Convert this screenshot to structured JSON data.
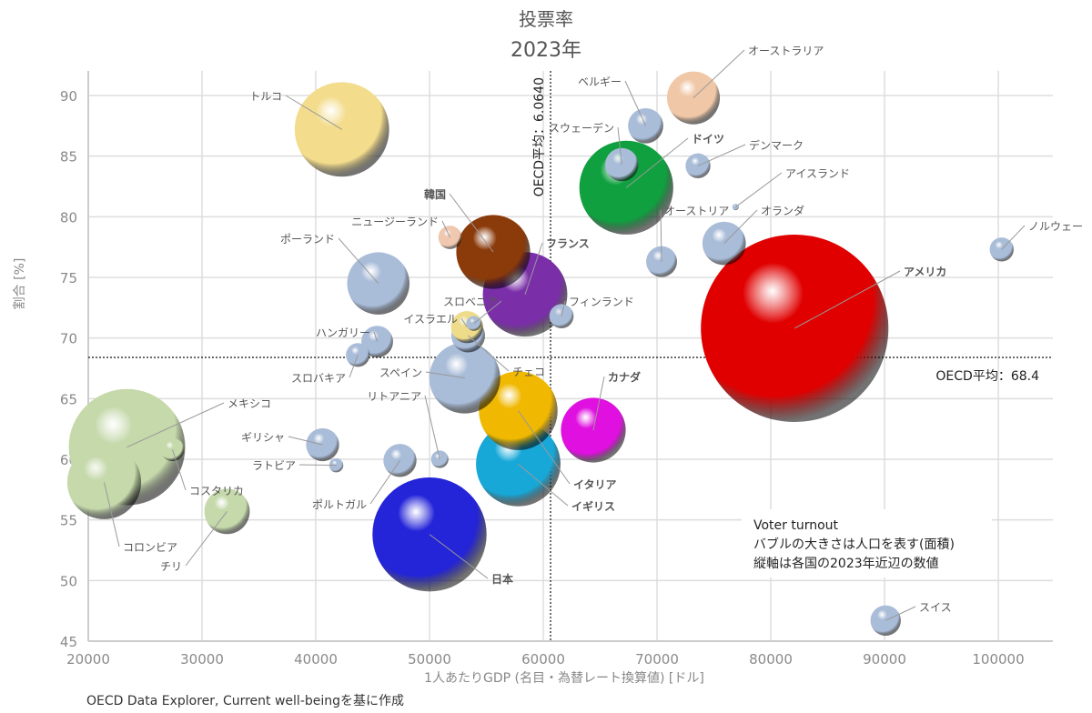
{
  "chart_data": {
    "type": "bubble",
    "title": "投票率",
    "subtitle": "2023年",
    "xlabel": "1人あたりGDP (名目・為替レート換算値) [ドル]",
    "ylabel": "割合 [%]",
    "xlim": [
      20000,
      105000
    ],
    "ylim": [
      45,
      92
    ],
    "xticks": [
      "20000",
      "30000",
      "40000",
      "50000",
      "60000",
      "70000",
      "80000",
      "90000",
      "100000"
    ],
    "yticks": [
      "45",
      "50",
      "55",
      "60",
      "65",
      "70",
      "75",
      "80",
      "85",
      "90"
    ],
    "grid": true,
    "size_meaning": "population (area)",
    "oecd_avg_x": {
      "value": 60640,
      "label": "OECD平均：6.0640"
    },
    "oecd_avg_y": {
      "value": 68.4,
      "label": "OECD平均：68.4"
    },
    "note": [
      "Voter turnout",
      "バブルの大きさは人口を表す(面積)",
      "縦軸は各国の2023年近辺の数値"
    ],
    "source": "OECD Data Explorer, Current well-beingを基に作成",
    "points": [
      {
        "name": "メキシコ",
        "x": 23400,
        "y": 61.0,
        "pop": 129,
        "color": "#c5d9ab",
        "label_color": "#555555"
      },
      {
        "name": "コロンビア",
        "x": 21400,
        "y": 58.1,
        "pop": 52,
        "color": "#c5d9ab",
        "label_color": "#555555"
      },
      {
        "name": "コスタリカ",
        "x": 27400,
        "y": 60.8,
        "pop": 5.2,
        "color": "#c5d9ab",
        "label_color": "#555555"
      },
      {
        "name": "チリ",
        "x": 32200,
        "y": 55.7,
        "pop": 19.6,
        "color": "#c5d9ab",
        "label_color": "#555555"
      },
      {
        "name": "トルコ",
        "x": 42300,
        "y": 87.2,
        "pop": 85,
        "color": "#f3dc8c",
        "label_color": "#555555"
      },
      {
        "name": "ポーランド",
        "x": 45500,
        "y": 74.5,
        "pop": 37,
        "color": "#a9bcd8",
        "label_color": "#555555"
      },
      {
        "name": "ハンガリー",
        "x": 45400,
        "y": 69.7,
        "pop": 9.6,
        "color": "#a9bcd8",
        "label_color": "#555555"
      },
      {
        "name": "スロバキア",
        "x": 43700,
        "y": 68.6,
        "pop": 5.4,
        "color": "#a9bcd8",
        "label_color": "#555555"
      },
      {
        "name": "ギリシャ",
        "x": 40600,
        "y": 61.2,
        "pop": 10.4,
        "color": "#a9bcd8",
        "label_color": "#555555"
      },
      {
        "name": "ラトビア",
        "x": 41800,
        "y": 59.5,
        "pop": 1.9,
        "color": "#a9bcd8",
        "label_color": "#555555"
      },
      {
        "name": "ポルトガル",
        "x": 47400,
        "y": 59.9,
        "pop": 10.4,
        "color": "#a9bcd8",
        "label_color": "#555555"
      },
      {
        "name": "リトアニア",
        "x": 50900,
        "y": 60.0,
        "pop": 2.9,
        "color": "#a9bcd8",
        "label_color": "#555555"
      },
      {
        "name": "日本",
        "x": 50000,
        "y": 53.8,
        "pop": 124,
        "color": "#2424d8",
        "label_color": "#2a2ad0"
      },
      {
        "name": "スペイン",
        "x": 53100,
        "y": 66.7,
        "pop": 48,
        "color": "#a9bcd8",
        "label_color": "#555555"
      },
      {
        "name": "チェコ",
        "x": 53400,
        "y": 70.2,
        "pop": 10.8,
        "color": "#a9bcd8",
        "label_color": "#555555"
      },
      {
        "name": "イスラエル",
        "x": 53300,
        "y": 70.9,
        "pop": 9.8,
        "color": "#eedc8a",
        "label_color": "#555555"
      },
      {
        "name": "スロベニア",
        "x": 53900,
        "y": 71.2,
        "pop": 2.1,
        "color": "#a9bcd8",
        "label_color": "#555555"
      },
      {
        "name": "韓国",
        "x": 55600,
        "y": 77.1,
        "pop": 52,
        "color": "#8b3a0a",
        "label_color": "#a0522d"
      },
      {
        "name": "ニュージーランド",
        "x": 51800,
        "y": 78.3,
        "pop": 5.2,
        "color": "#f0c8b0",
        "label_color": "#555555"
      },
      {
        "name": "フランス",
        "x": 58400,
        "y": 73.6,
        "pop": 68,
        "color": "#7a2fa8",
        "label_color": "#7a3aa8"
      },
      {
        "name": "フィンランド",
        "x": 61600,
        "y": 71.8,
        "pop": 5.6,
        "color": "#a9bcd8",
        "label_color": "#555555"
      },
      {
        "name": "イタリア",
        "x": 57800,
        "y": 64.0,
        "pop": 59,
        "color": "#f0b800",
        "label_color": "#f0b000"
      },
      {
        "name": "イギリス",
        "x": 57800,
        "y": 59.6,
        "pop": 68,
        "color": "#18a8d8",
        "label_color": "#20a8d8"
      },
      {
        "name": "カナダ",
        "x": 64400,
        "y": 62.4,
        "pop": 40,
        "color": "#e010e0",
        "label_color": "#e040e0"
      },
      {
        "name": "ベルギー",
        "x": 69000,
        "y": 87.5,
        "pop": 11.8,
        "color": "#a9bcd8",
        "label_color": "#555555"
      },
      {
        "name": "オーストラリア",
        "x": 73200,
        "y": 89.8,
        "pop": 26.6,
        "color": "#f0c8a8",
        "label_color": "#555555"
      },
      {
        "name": "ドイツ",
        "x": 67300,
        "y": 82.4,
        "pop": 84,
        "color": "#10a040",
        "label_color": "#20a050"
      },
      {
        "name": "スウェーデン",
        "x": 66900,
        "y": 84.3,
        "pop": 10.5,
        "color": "#a9bcd8",
        "label_color": "#555555"
      },
      {
        "name": "デンマーク",
        "x": 73600,
        "y": 84.2,
        "pop": 5.9,
        "color": "#a9bcd8",
        "label_color": "#555555"
      },
      {
        "name": "アイスランド",
        "x": 76900,
        "y": 80.8,
        "pop": 0.39,
        "color": "#a9bcd8",
        "label_color": "#555555"
      },
      {
        "name": "オーストリア",
        "x": 70400,
        "y": 76.3,
        "pop": 9.1,
        "color": "#a9bcd8",
        "label_color": "#555555"
      },
      {
        "name": "アメリカ",
        "x": 82100,
        "y": 70.8,
        "pop": 335,
        "color": "#e00000",
        "label_color": "#e02020"
      },
      {
        "name": "オランダ",
        "x": 75900,
        "y": 77.8,
        "pop": 17.9,
        "color": "#a9bcd8",
        "label_color": "#555555"
      },
      {
        "name": "ノルウェー",
        "x": 100300,
        "y": 77.3,
        "pop": 5.5,
        "color": "#a9bcd8",
        "label_color": "#555555"
      },
      {
        "name": "スイス",
        "x": 90100,
        "y": 46.7,
        "pop": 8.8,
        "color": "#a9bcd8",
        "label_color": "#555555"
      }
    ]
  }
}
